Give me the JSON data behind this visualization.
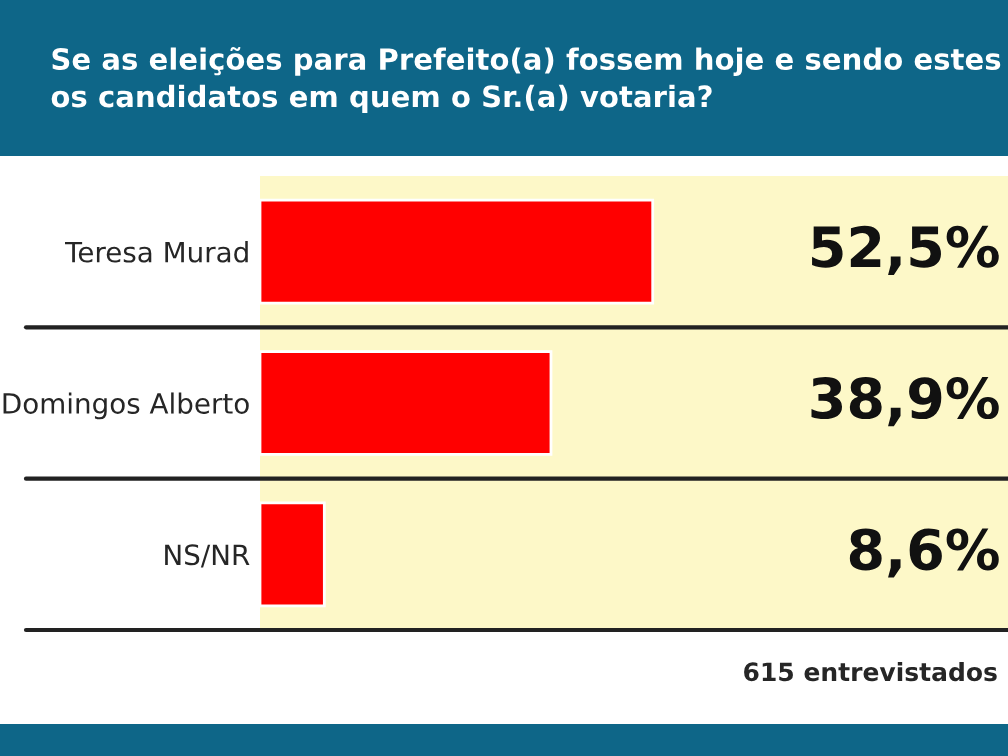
{
  "chart_data": {
    "type": "bar",
    "orientation": "horizontal",
    "title": "Se as eleições para Prefeito(a) fossem hoje e sendo estes\nos candidatos em quem o Sr.(a) votaria?",
    "categories": [
      "Teresa Murad",
      "Domingos Alberto",
      "NS/NR"
    ],
    "values": [
      52.5,
      38.9,
      8.6
    ],
    "value_labels": [
      "52,5%",
      "38,9%",
      "8,6%"
    ],
    "color": "#ff0000",
    "xlim": [
      0,
      100
    ],
    "tick_labels": "y",
    "grid": false,
    "legend": false,
    "annotations": [
      "615 entrevistados"
    ]
  }
}
